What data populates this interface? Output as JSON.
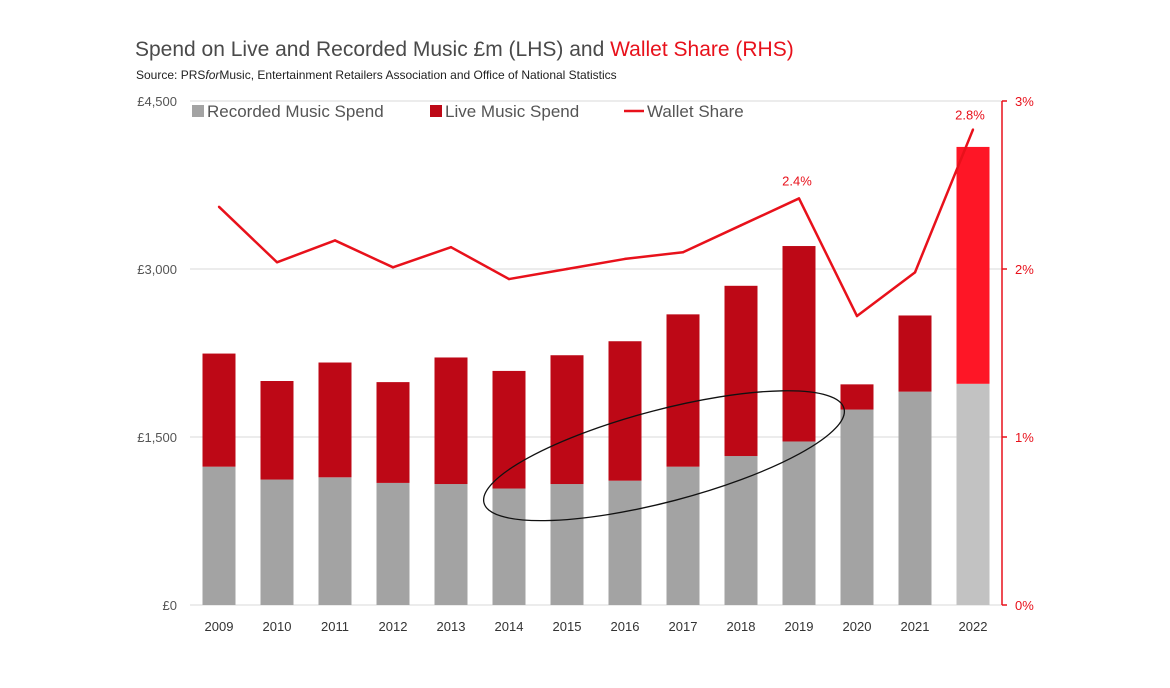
{
  "header": {
    "title_main": "Spend on Live and Recorded Music £m (LHS) and ",
    "title_accent": "Wallet Share (RHS)",
    "source_prefix": "Source: PRS",
    "source_italic": "for",
    "source_suffix": "Music, Entertainment Retailers Association and Office of National Statistics"
  },
  "chart_data": {
    "type": "bar",
    "stacked": true,
    "categories": [
      "2009",
      "2010",
      "2011",
      "2012",
      "2013",
      "2014",
      "2015",
      "2016",
      "2017",
      "2018",
      "2019",
      "2020",
      "2021",
      "2022"
    ],
    "series": [
      {
        "name": "Recorded Music Spend",
        "axis": "left",
        "color": "#a3a3a3",
        "highlight_color": "#c2c2c2",
        "values": [
          1235,
          1120,
          1140,
          1090,
          1080,
          1040,
          1080,
          1110,
          1235,
          1330,
          1460,
          1745,
          1905,
          1975
        ]
      },
      {
        "name": "Live Music Spend",
        "axis": "left",
        "color": "#bd0816",
        "highlight_color": "#fe1626",
        "values": [
          1010,
          880,
          1025,
          900,
          1130,
          1050,
          1150,
          1245,
          1360,
          1520,
          1745,
          225,
          680,
          2115
        ]
      },
      {
        "name": "Wallet Share",
        "axis": "right",
        "type": "line",
        "color": "#e8111b",
        "values": [
          2.37,
          2.04,
          2.17,
          2.01,
          2.13,
          1.94,
          2.0,
          2.06,
          2.1,
          2.26,
          2.42,
          1.72,
          1.98,
          2.83
        ]
      }
    ],
    "highlight_category": "2022",
    "left_axis": {
      "min": 0,
      "max": 4500,
      "ticks": [
        0,
        1500,
        3000,
        4500
      ],
      "tick_labels": [
        "£0",
        "£1,500",
        "£3,000",
        "£4,500"
      ]
    },
    "right_axis": {
      "min": 0,
      "max": 3,
      "ticks": [
        0,
        1,
        2,
        3
      ],
      "tick_labels": [
        "0%",
        "1%",
        "2%",
        "3%"
      ]
    },
    "data_labels": [
      {
        "category": "2019",
        "series": "Wallet Share",
        "text": "2.4%"
      },
      {
        "category": "2022",
        "series": "Wallet Share",
        "text": "2.8%"
      }
    ],
    "annotation": {
      "shape": "ellipse",
      "from_category": "2014",
      "to_category": "2019",
      "description_value_range": [
        1000,
        1800
      ]
    },
    "gridlines": true,
    "legend_position": "top-left"
  }
}
